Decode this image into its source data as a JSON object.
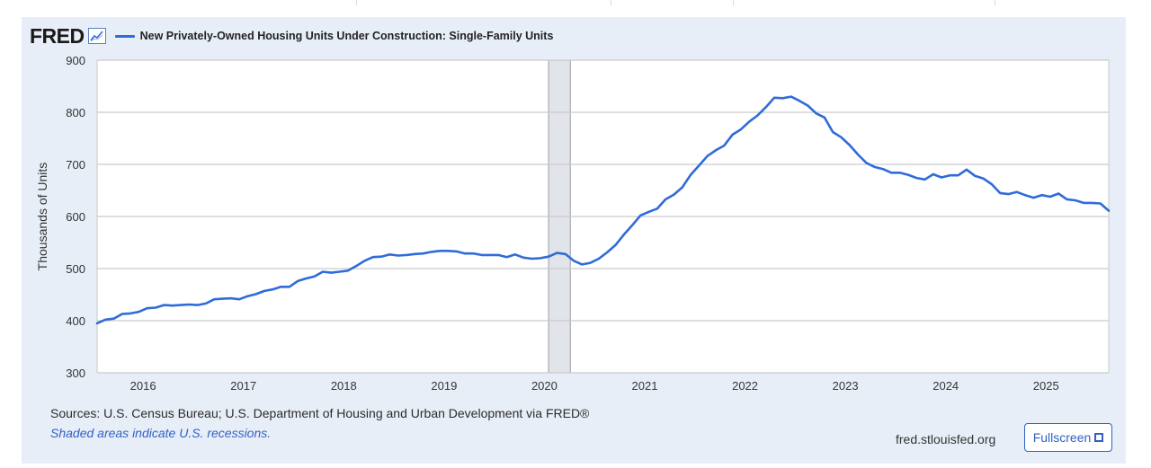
{
  "header": {
    "logo_text": "FRED",
    "series_title": "New Privately-Owned Housing Units Under Construction: Single-Family Units"
  },
  "footer": {
    "sources": "Sources: U.S. Census Bureau; U.S. Department of Housing and Urban Development via FRED®",
    "recession_note": "Shaded areas indicate U.S. recessions.",
    "site_url": "fred.stlouisfed.org",
    "fullscreen_label": "Fullscreen"
  },
  "colors": {
    "line": "#2f6bd9",
    "recession": "#e1e4e9",
    "grid": "#c9c9c9",
    "panel": "#e8eef8"
  },
  "chart_data": {
    "type": "line",
    "title": "New Privately-Owned Housing Units Under Construction: Single-Family Units",
    "ylabel": "Thousands of Units",
    "xlabel": "",
    "ylim": [
      300,
      900
    ],
    "yticks": [
      300,
      400,
      500,
      600,
      700,
      800,
      900
    ],
    "xticks": [
      "2016",
      "2017",
      "2018",
      "2019",
      "2020",
      "2021",
      "2022",
      "2023",
      "2024",
      "2025"
    ],
    "xrange": [
      "2015-08",
      "2025-08"
    ],
    "grid": true,
    "recessions": [
      {
        "start": "2020-02",
        "end": "2020-04"
      }
    ],
    "series": [
      {
        "name": "New Privately-Owned Housing Units Under Construction: Single-Family Units",
        "points": [
          [
            "2015-08",
            395
          ],
          [
            "2015-09",
            402
          ],
          [
            "2015-10",
            404
          ],
          [
            "2015-11",
            413
          ],
          [
            "2015-12",
            414
          ],
          [
            "2016-01",
            417
          ],
          [
            "2016-02",
            424
          ],
          [
            "2016-03",
            425
          ],
          [
            "2016-04",
            430
          ],
          [
            "2016-05",
            429
          ],
          [
            "2016-06",
            430
          ],
          [
            "2016-07",
            431
          ],
          [
            "2016-08",
            430
          ],
          [
            "2016-09",
            433
          ],
          [
            "2016-10",
            441
          ],
          [
            "2016-11",
            442
          ],
          [
            "2016-12",
            443
          ],
          [
            "2017-01",
            441
          ],
          [
            "2017-02",
            447
          ],
          [
            "2017-03",
            451
          ],
          [
            "2017-04",
            457
          ],
          [
            "2017-05",
            460
          ],
          [
            "2017-06",
            465
          ],
          [
            "2017-07",
            465
          ],
          [
            "2017-08",
            476
          ],
          [
            "2017-09",
            481
          ],
          [
            "2017-10",
            485
          ],
          [
            "2017-11",
            494
          ],
          [
            "2017-12",
            492
          ],
          [
            "2018-01",
            494
          ],
          [
            "2018-02",
            496
          ],
          [
            "2018-03",
            505
          ],
          [
            "2018-04",
            515
          ],
          [
            "2018-05",
            522
          ],
          [
            "2018-06",
            523
          ],
          [
            "2018-07",
            527
          ],
          [
            "2018-08",
            525
          ],
          [
            "2018-09",
            526
          ],
          [
            "2018-10",
            528
          ],
          [
            "2018-11",
            529
          ],
          [
            "2018-12",
            532
          ],
          [
            "2019-01",
            534
          ],
          [
            "2019-02",
            534
          ],
          [
            "2019-03",
            533
          ],
          [
            "2019-04",
            529
          ],
          [
            "2019-05",
            529
          ],
          [
            "2019-06",
            526
          ],
          [
            "2019-07",
            526
          ],
          [
            "2019-08",
            526
          ],
          [
            "2019-09",
            522
          ],
          [
            "2019-10",
            527
          ],
          [
            "2019-11",
            521
          ],
          [
            "2019-12",
            519
          ],
          [
            "2020-01",
            520
          ],
          [
            "2020-02",
            523
          ],
          [
            "2020-03",
            530
          ],
          [
            "2020-04",
            528
          ],
          [
            "2020-05",
            515
          ],
          [
            "2020-06",
            508
          ],
          [
            "2020-07",
            511
          ],
          [
            "2020-08",
            519
          ],
          [
            "2020-09",
            531
          ],
          [
            "2020-10",
            545
          ],
          [
            "2020-11",
            565
          ],
          [
            "2020-12",
            583
          ],
          [
            "2021-01",
            602
          ],
          [
            "2021-02",
            609
          ],
          [
            "2021-03",
            615
          ],
          [
            "2021-04",
            633
          ],
          [
            "2021-05",
            642
          ],
          [
            "2021-06",
            656
          ],
          [
            "2021-07",
            680
          ],
          [
            "2021-08",
            698
          ],
          [
            "2021-09",
            716
          ],
          [
            "2021-10",
            727
          ],
          [
            "2021-11",
            736
          ],
          [
            "2021-12",
            757
          ],
          [
            "2022-01",
            767
          ],
          [
            "2022-02",
            782
          ],
          [
            "2022-03",
            794
          ],
          [
            "2022-04",
            810
          ],
          [
            "2022-05",
            828
          ],
          [
            "2022-06",
            827
          ],
          [
            "2022-07",
            830
          ],
          [
            "2022-08",
            822
          ],
          [
            "2022-09",
            813
          ],
          [
            "2022-10",
            798
          ],
          [
            "2022-11",
            790
          ],
          [
            "2022-12",
            762
          ],
          [
            "2023-01",
            752
          ],
          [
            "2023-02",
            737
          ],
          [
            "2023-03",
            719
          ],
          [
            "2023-04",
            703
          ],
          [
            "2023-05",
            695
          ],
          [
            "2023-06",
            691
          ],
          [
            "2023-07",
            684
          ],
          [
            "2023-08",
            684
          ],
          [
            "2023-09",
            680
          ],
          [
            "2023-10",
            674
          ],
          [
            "2023-11",
            671
          ],
          [
            "2023-12",
            681
          ],
          [
            "2024-01",
            675
          ],
          [
            "2024-02",
            679
          ],
          [
            "2024-03",
            679
          ],
          [
            "2024-04",
            690
          ],
          [
            "2024-05",
            678
          ],
          [
            "2024-06",
            673
          ],
          [
            "2024-07",
            662
          ],
          [
            "2024-08",
            645
          ],
          [
            "2024-09",
            643
          ],
          [
            "2024-10",
            647
          ],
          [
            "2024-11",
            641
          ],
          [
            "2024-12",
            636
          ],
          [
            "2025-01",
            641
          ],
          [
            "2025-02",
            638
          ],
          [
            "2025-03",
            644
          ],
          [
            "2025-04",
            633
          ],
          [
            "2025-05",
            631
          ],
          [
            "2025-06",
            626
          ],
          [
            "2025-07",
            626
          ],
          [
            "2025-08",
            625
          ],
          [
            "2025-09",
            611
          ]
        ]
      }
    ]
  }
}
